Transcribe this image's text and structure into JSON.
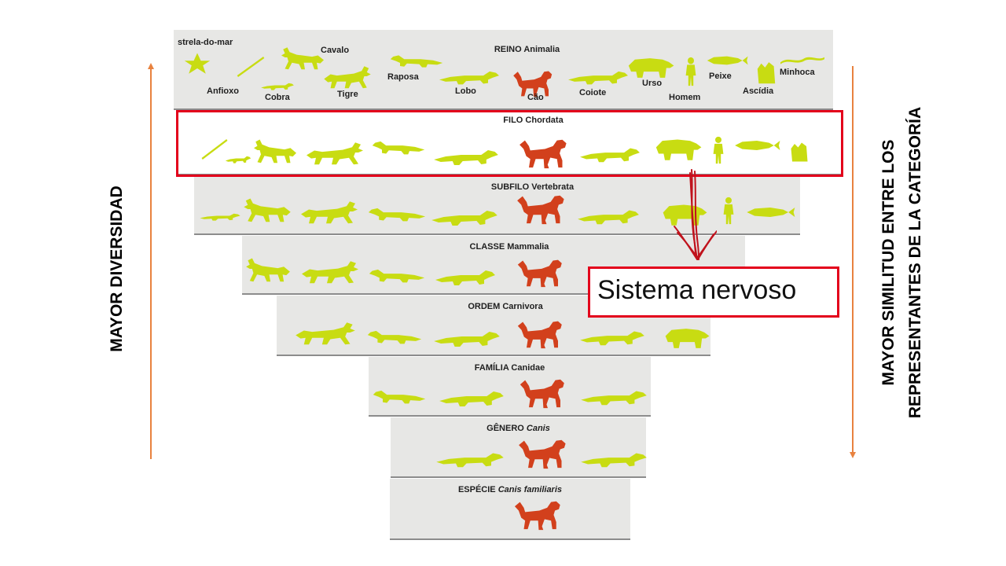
{
  "left_label": "MAYOR DIVERSIDAD",
  "right_label_line1": "MAYOR SIMILITUD ENTRE LOS",
  "right_label_line2": "REPRESENTANTES DE LA CATEGORÍA",
  "callout": "Sistema nervoso",
  "colors": {
    "highlight": "#e3001b",
    "arrow": "#e8823f",
    "animal": "#c8dc12",
    "dog": "#d2401c",
    "band": "#e7e7e5"
  },
  "levels": [
    {
      "rank": "REINO",
      "taxon": "Animalia",
      "italic": false
    },
    {
      "rank": "FILO",
      "taxon": "Chordata",
      "italic": false
    },
    {
      "rank": "SUBFILO",
      "taxon": "Vertebrata",
      "italic": false
    },
    {
      "rank": "CLASSE",
      "taxon": "Mammalia",
      "italic": false
    },
    {
      "rank": "ORDEM",
      "taxon": "Carnivora",
      "italic": false
    },
    {
      "rank": "FAMÍLIA",
      "taxon": "Canidae",
      "italic": false
    },
    {
      "rank": "GÊNERO",
      "taxon": "Canis",
      "italic": true
    },
    {
      "rank": "ESPÉCIE",
      "taxon": "Canis familiaris",
      "italic": true
    }
  ],
  "kingdom_animals": [
    "strela-do-mar",
    "Anfioxo",
    "Cobra",
    "Cavalo",
    "Tigre",
    "Raposa",
    "Lobo",
    "Cão",
    "Coiote",
    "Urso",
    "Homem",
    "Peixe",
    "Ascídia",
    "Minhoca"
  ]
}
